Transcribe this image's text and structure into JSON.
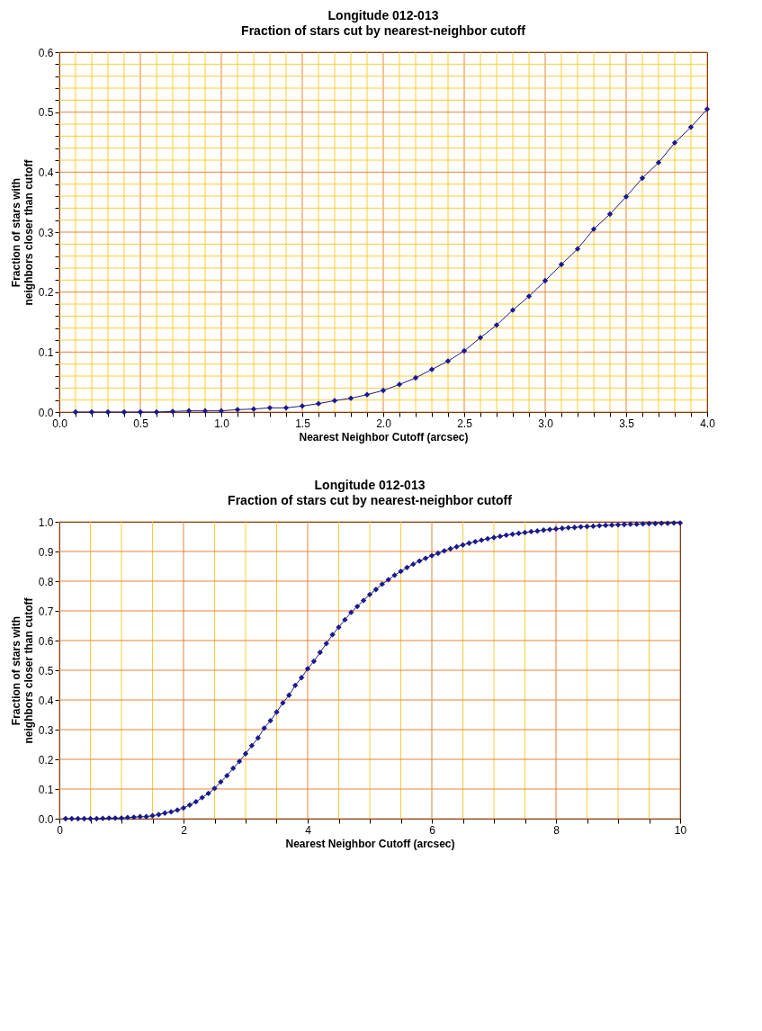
{
  "chart_data": [
    {
      "type": "line",
      "title": "Longitude 012-013",
      "subtitle": "Fraction of stars cut by nearest-neighbor cutoff",
      "xlabel": "Nearest Neighbor Cutoff (arcsec)",
      "ylabel": "Fraction of stars with neighbors closer than cutoff",
      "x": [
        0.1,
        0.2,
        0.3,
        0.4,
        0.5,
        0.6,
        0.7,
        0.8,
        0.9,
        1.0,
        1.1,
        1.2,
        1.3,
        1.4,
        1.5,
        1.6,
        1.7,
        1.8,
        1.9,
        2.0,
        2.1,
        2.2,
        2.3,
        2.4,
        2.5,
        2.6,
        2.7,
        2.8,
        2.9,
        3.0,
        3.1,
        3.2,
        3.3,
        3.4,
        3.5,
        3.6,
        3.7,
        3.8,
        3.9,
        4.0
      ],
      "series": [
        {
          "color": "#1a1a8c",
          "values": [
            0,
            0,
            0,
            0,
            0,
            0,
            0.001,
            0.002,
            0.002,
            0.002,
            0.004,
            0.005,
            0.007,
            0.007,
            0.01,
            0.014,
            0.019,
            0.023,
            0.029,
            0.036,
            0.046,
            0.057,
            0.071,
            0.085,
            0.102,
            0.124,
            0.145,
            0.17,
            0.193,
            0.219,
            0.246,
            0.272,
            0.305,
            0.33,
            0.359,
            0.39,
            0.416,
            0.449,
            0.475,
            0.505
          ]
        }
      ],
      "xlim": [
        0,
        4
      ],
      "ylim": [
        0,
        0.6
      ],
      "xticks": [
        {
          "value": 0,
          "label": "0.0"
        },
        {
          "value": 0.1,
          "label": null
        },
        {
          "value": 0.2,
          "label": null
        },
        {
          "value": 0.3,
          "label": null
        },
        {
          "value": 0.4,
          "label": null
        },
        {
          "value": 0.5,
          "label": "0.5"
        },
        {
          "value": 0.6,
          "label": null
        },
        {
          "value": 0.7,
          "label": null
        },
        {
          "value": 0.8,
          "label": null
        },
        {
          "value": 0.9,
          "label": null
        },
        {
          "value": 1,
          "label": "1.0"
        },
        {
          "value": 1.1,
          "label": null
        },
        {
          "value": 1.2,
          "label": null
        },
        {
          "value": 1.3,
          "label": null
        },
        {
          "value": 1.4,
          "label": null
        },
        {
          "value": 1.5,
          "label": "1.5"
        },
        {
          "value": 1.6,
          "label": null
        },
        {
          "value": 1.7,
          "label": null
        },
        {
          "value": 1.8,
          "label": null
        },
        {
          "value": 1.9,
          "label": null
        },
        {
          "value": 2,
          "label": "2.0"
        },
        {
          "value": 2.1,
          "label": null
        },
        {
          "value": 2.2,
          "label": null
        },
        {
          "value": 2.3,
          "label": null
        },
        {
          "value": 2.4,
          "label": null
        },
        {
          "value": 2.5,
          "label": "2.5"
        },
        {
          "value": 2.6,
          "label": null
        },
        {
          "value": 2.7,
          "label": null
        },
        {
          "value": 2.8,
          "label": null
        },
        {
          "value": 2.9,
          "label": null
        },
        {
          "value": 3,
          "label": "3.0"
        },
        {
          "value": 3.1,
          "label": null
        },
        {
          "value": 3.2,
          "label": null
        },
        {
          "value": 3.3,
          "label": null
        },
        {
          "value": 3.4,
          "label": null
        },
        {
          "value": 3.5,
          "label": "3.5"
        },
        {
          "value": 3.6,
          "label": null
        },
        {
          "value": 3.7,
          "label": null
        },
        {
          "value": 3.8,
          "label": null
        },
        {
          "value": 3.9,
          "label": null
        },
        {
          "value": 4,
          "label": "4.0"
        }
      ],
      "yticks": [
        {
          "value": 0,
          "label": "0.0"
        },
        {
          "value": 0.02,
          "label": null
        },
        {
          "value": 0.04,
          "label": null
        },
        {
          "value": 0.06,
          "label": null
        },
        {
          "value": 0.08,
          "label": null
        },
        {
          "value": 0.1,
          "label": "0.1"
        },
        {
          "value": 0.12,
          "label": null
        },
        {
          "value": 0.14,
          "label": null
        },
        {
          "value": 0.16,
          "label": null
        },
        {
          "value": 0.18,
          "label": null
        },
        {
          "value": 0.2,
          "label": "0.2"
        },
        {
          "value": 0.22,
          "label": null
        },
        {
          "value": 0.24,
          "label": null
        },
        {
          "value": 0.26,
          "label": null
        },
        {
          "value": 0.28,
          "label": null
        },
        {
          "value": 0.3,
          "label": "0.3"
        },
        {
          "value": 0.32,
          "label": null
        },
        {
          "value": 0.34,
          "label": null
        },
        {
          "value": 0.36,
          "label": null
        },
        {
          "value": 0.38,
          "label": null
        },
        {
          "value": 0.4,
          "label": "0.4"
        },
        {
          "value": 0.42,
          "label": null
        },
        {
          "value": 0.44,
          "label": null
        },
        {
          "value": 0.46,
          "label": null
        },
        {
          "value": 0.48,
          "label": null
        },
        {
          "value": 0.5,
          "label": "0.5"
        },
        {
          "value": 0.52,
          "label": null
        },
        {
          "value": 0.54,
          "label": null
        },
        {
          "value": 0.56,
          "label": null
        },
        {
          "value": 0.58,
          "label": null
        },
        {
          "value": 0.6,
          "label": "0.6"
        }
      ],
      "grid": true,
      "marker": "diamond",
      "line_style": "solid"
    },
    {
      "type": "line",
      "title": "Longitude 012-013",
      "subtitle": "Fraction of stars cut by nearest-neighbor cutoff",
      "xlabel": "Nearest Neighbor Cutoff (arcsec)",
      "ylabel": "Fraction of stars with neighbors closer than cutoff",
      "x": [
        0.1,
        0.2,
        0.3,
        0.4,
        0.5,
        0.6,
        0.7,
        0.8,
        0.9,
        1.0,
        1.1,
        1.2,
        1.3,
        1.4,
        1.5,
        1.6,
        1.7,
        1.8,
        1.9,
        2.0,
        2.1,
        2.2,
        2.3,
        2.4,
        2.5,
        2.6,
        2.7,
        2.8,
        2.9,
        3.0,
        3.1,
        3.2,
        3.3,
        3.4,
        3.5,
        3.6,
        3.7,
        3.8,
        3.9,
        4.0,
        4.1,
        4.2,
        4.3,
        4.4,
        4.5,
        4.6,
        4.7,
        4.8,
        4.9,
        5.0,
        5.1,
        5.2,
        5.3,
        5.4,
        5.5,
        5.6,
        5.7,
        5.8,
        5.9,
        6.0,
        6.1,
        6.2,
        6.3,
        6.4,
        6.5,
        6.6,
        6.7,
        6.8,
        6.9,
        7.0,
        7.1,
        7.2,
        7.3,
        7.4,
        7.5,
        7.6,
        7.7,
        7.8,
        7.9,
        8.0,
        8.1,
        8.2,
        8.3,
        8.4,
        8.5,
        8.6,
        8.7,
        8.8,
        8.9,
        9.0,
        9.1,
        9.2,
        9.3,
        9.4,
        9.5,
        9.6,
        9.7,
        9.8,
        9.9,
        10.0
      ],
      "series": [
        {
          "color": "#1a1a8c",
          "values": [
            0,
            0,
            0,
            0,
            0,
            0,
            0.001,
            0.002,
            0.002,
            0.002,
            0.004,
            0.005,
            0.007,
            0.007,
            0.01,
            0.014,
            0.019,
            0.023,
            0.029,
            0.036,
            0.046,
            0.057,
            0.071,
            0.085,
            0.102,
            0.124,
            0.145,
            0.17,
            0.193,
            0.219,
            0.246,
            0.272,
            0.305,
            0.33,
            0.359,
            0.39,
            0.416,
            0.449,
            0.475,
            0.505,
            0.53,
            0.56,
            0.59,
            0.62,
            0.645,
            0.67,
            0.695,
            0.715,
            0.735,
            0.755,
            0.772,
            0.79,
            0.805,
            0.82,
            0.833,
            0.846,
            0.857,
            0.868,
            0.877,
            0.886,
            0.894,
            0.902,
            0.909,
            0.916,
            0.922,
            0.928,
            0.933,
            0.938,
            0.943,
            0.947,
            0.951,
            0.955,
            0.958,
            0.961,
            0.964,
            0.967,
            0.969,
            0.972,
            0.974,
            0.976,
            0.978,
            0.98,
            0.981,
            0.983,
            0.984,
            0.985,
            0.987,
            0.988,
            0.989,
            0.99,
            0.991,
            0.992,
            0.992,
            0.993,
            0.994,
            0.994,
            0.995,
            0.995,
            0.996,
            0.996
          ]
        }
      ],
      "xlim": [
        0,
        10
      ],
      "ylim": [
        0,
        1
      ],
      "xticks": [
        0,
        {
          "value": 0.5,
          "label": null
        },
        {
          "value": 1,
          "label": null
        },
        {
          "value": 1.5,
          "label": null
        },
        2,
        {
          "value": 2.5,
          "label": null
        },
        {
          "value": 3,
          "label": null
        },
        {
          "value": 3.5,
          "label": null
        },
        4,
        {
          "value": 4.5,
          "label": null
        },
        {
          "value": 5,
          "label": null
        },
        {
          "value": 5.5,
          "label": null
        },
        6,
        {
          "value": 6.5,
          "label": null
        },
        {
          "value": 7,
          "label": null
        },
        {
          "value": 7.5,
          "label": null
        },
        8,
        {
          "value": 8.5,
          "label": null
        },
        {
          "value": 9,
          "label": null
        },
        {
          "value": 9.5,
          "label": null
        },
        10
      ],
      "yticks": [
        {
          "value": 0,
          "label": "0.0"
        },
        {
          "value": 0.1,
          "label": "0.1"
        },
        {
          "value": 0.2,
          "label": "0.2"
        },
        {
          "value": 0.3,
          "label": "0.3"
        },
        {
          "value": 0.4,
          "label": "0.4"
        },
        {
          "value": 0.5,
          "label": "0.5"
        },
        {
          "value": 0.6,
          "label": "0.6"
        },
        {
          "value": 0.7,
          "label": "0.7"
        },
        {
          "value": 0.8,
          "label": "0.8"
        },
        {
          "value": 0.9,
          "label": "0.9"
        },
        {
          "value": 1,
          "label": "1.0"
        }
      ],
      "grid": true,
      "marker": "diamond",
      "line_style": "solid"
    }
  ]
}
